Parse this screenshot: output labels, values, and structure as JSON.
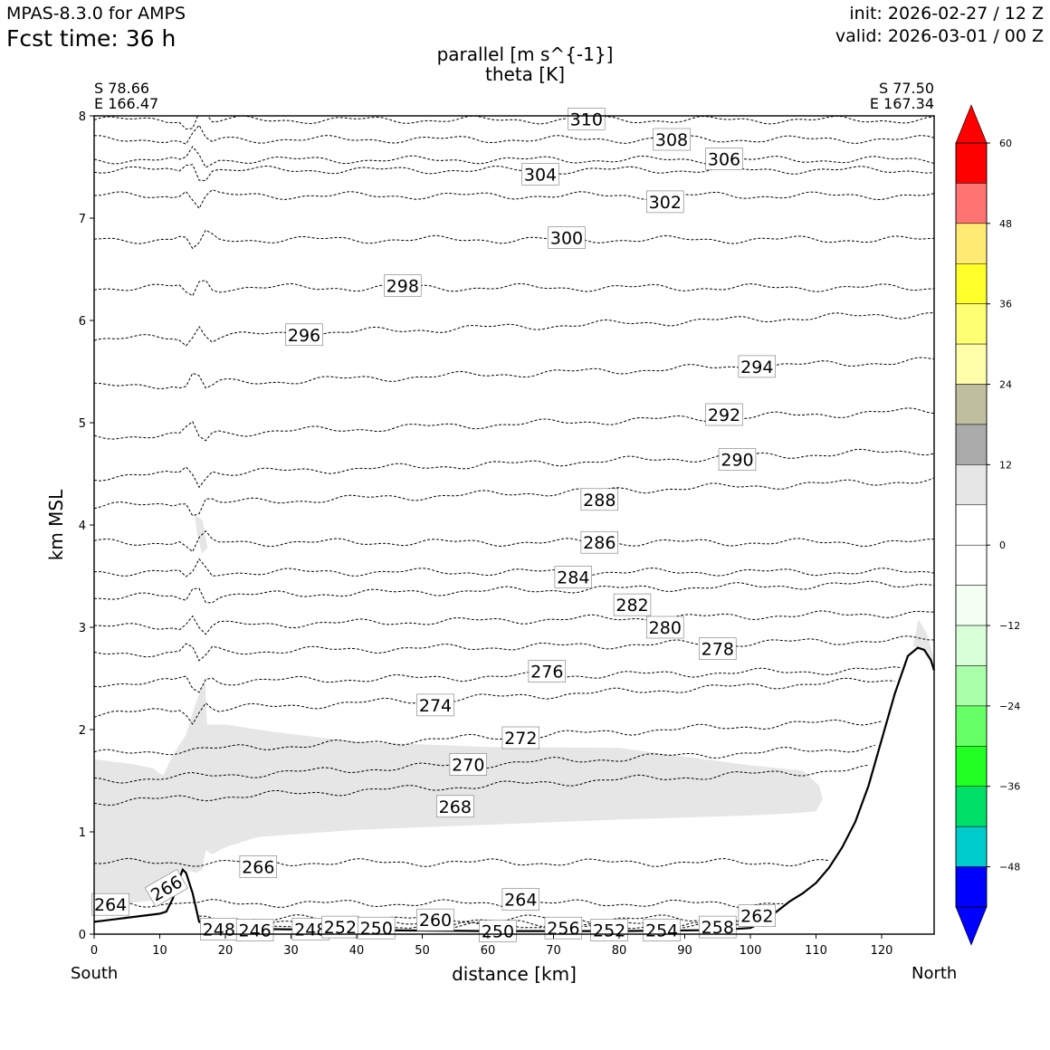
{
  "header": {
    "model": "MPAS-8.3.0 for AMPS",
    "fcst_time": "Fcst time:   36 h",
    "init": "init: 2026-02-27 / 12 Z",
    "valid": "valid: 2026-03-01 / 00 Z"
  },
  "chart_data": {
    "type": "cross-section",
    "title_line1": "parallel [m s^{-1}]",
    "title_line2": "theta [K]",
    "xlabel": "distance [km]",
    "ylabel": "km MSL",
    "xlim": [
      0,
      128
    ],
    "ylim": [
      0,
      8
    ],
    "x_ticks": [
      "0",
      "10",
      "20",
      "30",
      "40",
      "50",
      "60",
      "70",
      "80",
      "90",
      "100",
      "110",
      "120"
    ],
    "y_ticks": [
      "0",
      "1",
      "2",
      "3",
      "4",
      "5",
      "6",
      "7",
      "8"
    ],
    "endpoints": {
      "left": {
        "lat": "S 78.66",
        "lon": "E 166.47",
        "side": "South"
      },
      "right": {
        "lat": "S 77.50",
        "lon": "E 167.34",
        "side": "North"
      }
    },
    "terrain": [
      [
        0,
        0.12
      ],
      [
        5,
        0.16
      ],
      [
        10,
        0.2
      ],
      [
        11,
        0.22
      ],
      [
        12,
        0.35
      ],
      [
        13,
        0.55
      ],
      [
        13.5,
        0.63
      ],
      [
        14,
        0.6
      ],
      [
        15,
        0.4
      ],
      [
        16,
        0.12
      ],
      [
        18,
        0.08
      ],
      [
        25,
        0.05
      ],
      [
        40,
        0.04
      ],
      [
        60,
        0.03
      ],
      [
        80,
        0.03
      ],
      [
        95,
        0.04
      ],
      [
        100,
        0.06
      ],
      [
        102,
        0.12
      ],
      [
        104,
        0.22
      ],
      [
        106,
        0.32
      ],
      [
        108,
        0.4
      ],
      [
        110,
        0.5
      ],
      [
        112,
        0.65
      ],
      [
        114,
        0.85
      ],
      [
        116,
        1.1
      ],
      [
        118,
        1.45
      ],
      [
        120,
        1.9
      ],
      [
        122,
        2.35
      ],
      [
        124,
        2.72
      ],
      [
        125.5,
        2.8
      ],
      [
        126.5,
        2.78
      ],
      [
        127.5,
        2.68
      ],
      [
        128,
        2.58
      ]
    ],
    "theta_contours": [
      {
        "level": 310,
        "baseline": 7.96,
        "label_at": [
          75,
          7.97
        ],
        "label": "310"
      },
      {
        "level": 308,
        "baseline": 7.77,
        "label_at": [
          88,
          7.77
        ],
        "label": "308"
      },
      {
        "level": 306,
        "baseline": 7.57,
        "label_at": [
          96,
          7.58
        ],
        "label": "306"
      },
      {
        "level": 304,
        "baseline": 7.47,
        "label_at": [
          68,
          7.43
        ],
        "label": "304"
      },
      {
        "level": 302,
        "baseline": 7.22,
        "label_at": [
          87,
          7.16
        ],
        "label": "302"
      },
      {
        "level": 300,
        "baseline": 6.79,
        "label_at": [
          72,
          6.81
        ],
        "label": "300"
      },
      {
        "level": 298,
        "baseline": 6.32,
        "label_at": [
          47,
          6.34
        ],
        "label": "298"
      },
      {
        "level": 296,
        "baseline": 5.81,
        "label_at": [
          32,
          5.86
        ],
        "label": "296"
      },
      {
        "level": 294,
        "baseline": 5.35,
        "label_at": [
          101,
          5.55
        ],
        "label": "294"
      },
      {
        "level": 292,
        "baseline": 4.86,
        "label_at": [
          96,
          5.08
        ],
        "label": "292"
      },
      {
        "level": 290,
        "baseline": 4.47,
        "label_at": [
          98,
          4.64
        ],
        "label": "290"
      },
      {
        "level": 288,
        "baseline": 4.18,
        "label_at": [
          77,
          4.25
        ],
        "label": "288"
      },
      {
        "level": 286,
        "baseline": 3.83,
        "label_at": [
          77,
          3.83
        ],
        "label": "286"
      },
      {
        "level": 284,
        "baseline": 3.54,
        "label_at": [
          73,
          3.49
        ],
        "label": "284"
      },
      {
        "level": 282,
        "baseline": 3.29,
        "label_at": [
          82,
          3.22
        ],
        "label": "282"
      },
      {
        "level": 280,
        "baseline": 3.0,
        "label_at": [
          87,
          3.0
        ],
        "label": "280"
      },
      {
        "level": 278,
        "baseline": 2.74,
        "label_at": [
          95,
          2.79
        ],
        "label": "278"
      },
      {
        "level": 276,
        "baseline": 2.45,
        "label_at": [
          69,
          2.57
        ],
        "label": "276"
      },
      {
        "level": 274,
        "baseline": 2.15,
        "label_at": [
          52,
          2.24
        ],
        "label": "274"
      },
      {
        "level": 272,
        "baseline": 1.76,
        "label_at": [
          65,
          1.92
        ],
        "label": "272"
      },
      {
        "level": 270,
        "baseline": 1.5,
        "label_at": [
          57,
          1.66
        ],
        "label": "270"
      },
      {
        "level": 268,
        "baseline": 1.29,
        "label_at": [
          55,
          1.25
        ],
        "label": "268"
      },
      {
        "level": 266,
        "baseline": 0.7,
        "label_at": [
          25,
          0.66
        ],
        "label": "266"
      },
      {
        "level": 264,
        "baseline": 0.3,
        "label_at": [
          65,
          0.34
        ],
        "label": "264"
      },
      {
        "level": 262,
        "baseline": 0.15,
        "label_at": [
          101,
          0.18
        ],
        "label": "262"
      },
      {
        "level": 260,
        "baseline": 0.1,
        "label_at": [
          52,
          0.14
        ],
        "label": "260"
      },
      {
        "level": 258,
        "baseline": 0.08,
        "label_at": [
          95,
          0.07
        ],
        "label": "258"
      }
    ],
    "extra_labels": [
      {
        "label": "266",
        "at": [
          11,
          0.45
        ],
        "rotate": -30
      },
      {
        "label": "264",
        "at": [
          2.5,
          0.29
        ],
        "rotate": 0
      },
      {
        "label": "248",
        "at": [
          19,
          0.05
        ],
        "rotate": 0
      },
      {
        "label": "246",
        "at": [
          24.5,
          0.04
        ],
        "rotate": 0
      },
      {
        "label": "248",
        "at": [
          33,
          0.05
        ],
        "rotate": 0
      },
      {
        "label": "252",
        "at": [
          37.5,
          0.07
        ],
        "rotate": 0
      },
      {
        "label": "250",
        "at": [
          43,
          0.06
        ],
        "rotate": 0
      },
      {
        "label": "250",
        "at": [
          61.5,
          0.03
        ],
        "rotate": 0
      },
      {
        "label": "256",
        "at": [
          71.5,
          0.06
        ],
        "rotate": 0
      },
      {
        "label": "252",
        "at": [
          78.5,
          0.04
        ],
        "rotate": 0
      },
      {
        "label": "254",
        "at": [
          86.5,
          0.04
        ],
        "rotate": 0
      }
    ],
    "shaded_region": {
      "description": "parallel wind 6-12 m/s",
      "range_m_s": [
        6,
        12
      ]
    },
    "colorbar": {
      "ticks": [
        "60",
        "48",
        "36",
        "24",
        "12",
        "0",
        "−12",
        "−24",
        "−36",
        "−48"
      ],
      "segments": [
        {
          "min": 54,
          "max": 60,
          "color": "#ff0000"
        },
        {
          "min": 48,
          "max": 54,
          "color": "#ff7373"
        },
        {
          "min": 42,
          "max": 48,
          "color": "#ffea73"
        },
        {
          "min": 36,
          "max": 42,
          "color": "#ffff2a"
        },
        {
          "min": 30,
          "max": 36,
          "color": "#ffff73"
        },
        {
          "min": 24,
          "max": 30,
          "color": "#ffffaa"
        },
        {
          "min": 18,
          "max": 24,
          "color": "#bfbf9f"
        },
        {
          "min": 12,
          "max": 18,
          "color": "#aaaaaa"
        },
        {
          "min": 6,
          "max": 12,
          "color": "#e6e6e6"
        },
        {
          "min": 0,
          "max": 6,
          "color": "#ffffff"
        },
        {
          "min": -6,
          "max": 0,
          "color": "#ffffff"
        },
        {
          "min": -12,
          "max": -6,
          "color": "#f2fff2"
        },
        {
          "min": -18,
          "max": -12,
          "color": "#d9ffd9"
        },
        {
          "min": -24,
          "max": -18,
          "color": "#aaffaa"
        },
        {
          "min": -30,
          "max": -24,
          "color": "#66ff66"
        },
        {
          "min": -36,
          "max": -30,
          "color": "#22ff22"
        },
        {
          "min": -42,
          "max": -36,
          "color": "#00e066"
        },
        {
          "min": -48,
          "max": -42,
          "color": "#00cccc"
        },
        {
          "min": -54,
          "max": -48,
          "color": "#0000ff"
        }
      ],
      "over_color": "#ff0000",
      "under_color": "#0000ff"
    }
  }
}
